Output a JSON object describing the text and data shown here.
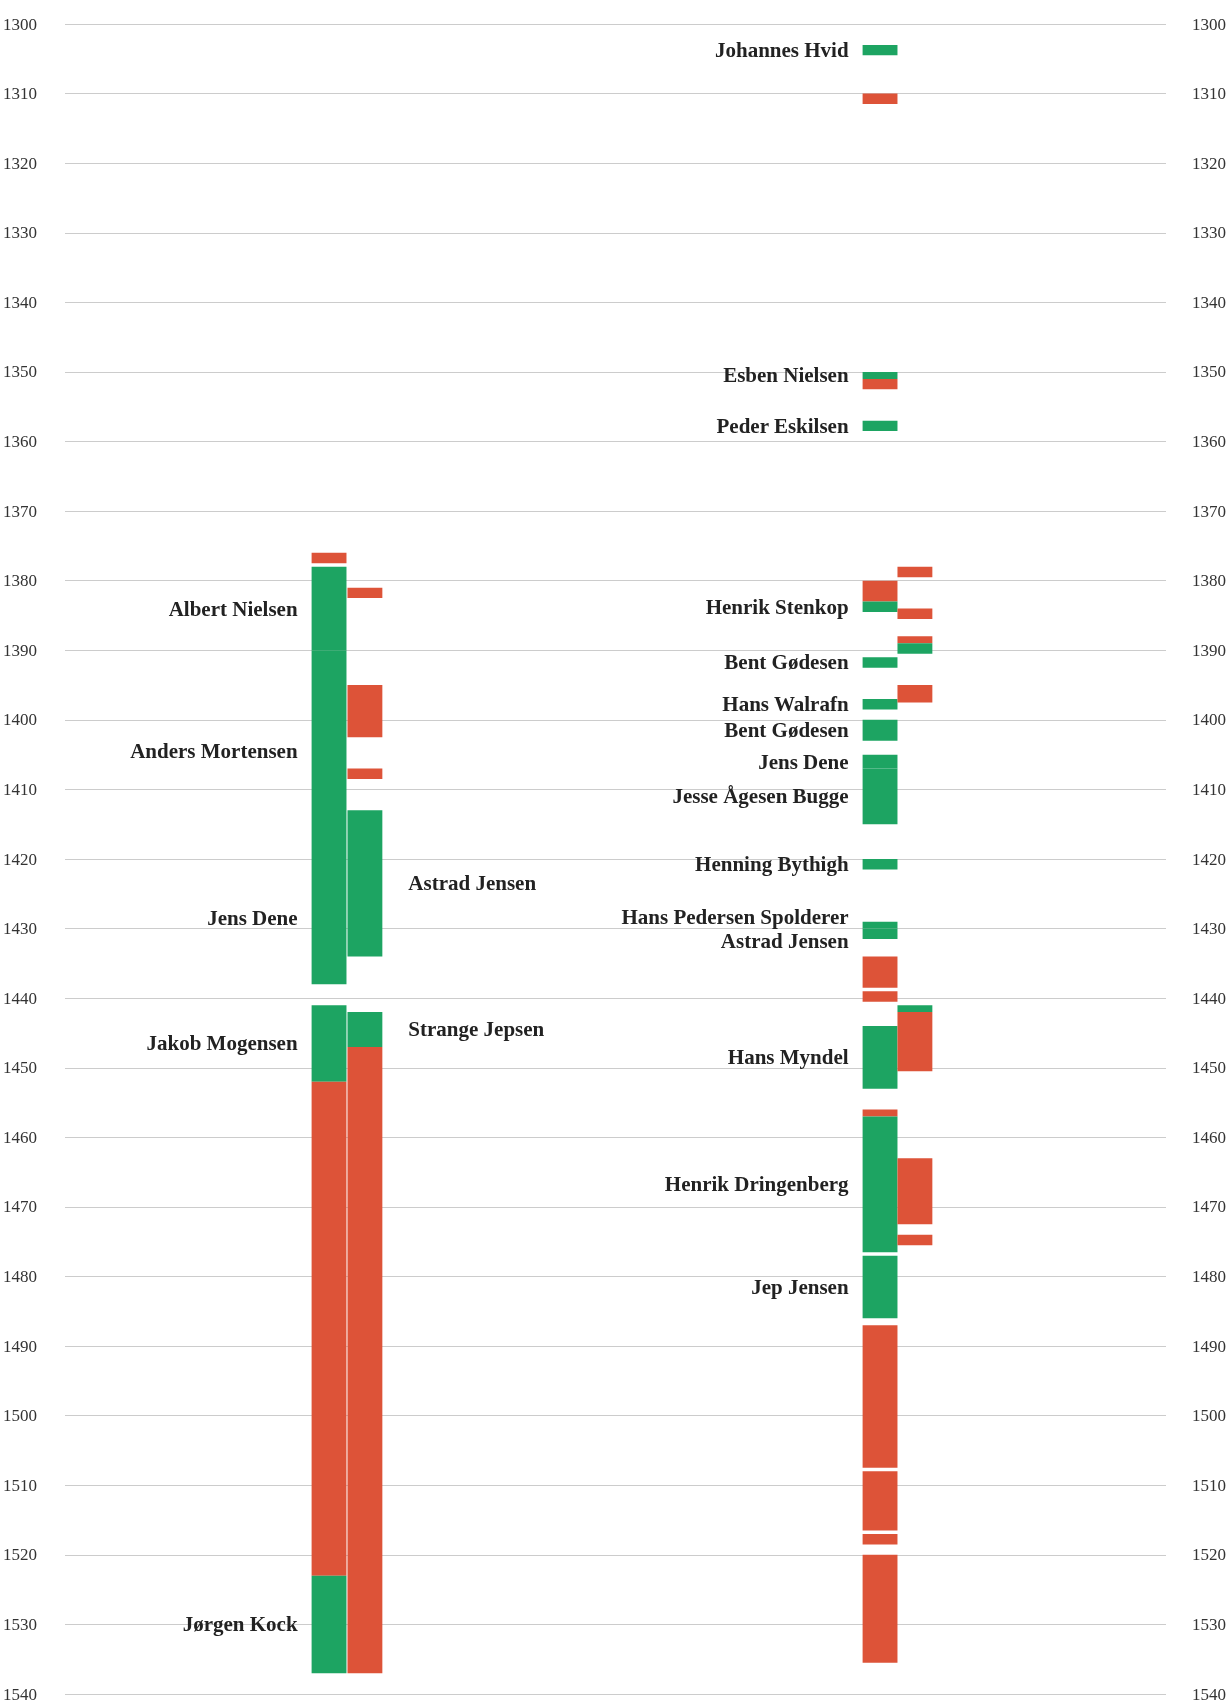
{
  "chart_data": {
    "type": "bar",
    "categories": [
      null,
      null,
      null,
      null
    ],
    "ylim": [
      1540,
      1300
    ],
    "yticks": [
      1300,
      1310,
      1320,
      1330,
      1340,
      1350,
      1360,
      1370,
      1380,
      1390,
      1400,
      1410,
      1420,
      1430,
      1440,
      1450,
      1460,
      1470,
      1480,
      1490,
      1500,
      1510,
      1520,
      1530,
      1540
    ],
    "y2lim": [
      1540,
      1300
    ],
    "y2ticks": [
      1300,
      1310,
      1320,
      1330,
      1340,
      1350,
      1360,
      1370,
      1380,
      1390,
      1400,
      1410,
      1420,
      1430,
      1440,
      1450,
      1460,
      1470,
      1480,
      1490,
      1500,
      1510,
      1520,
      1530,
      1540
    ],
    "grid": "y",
    "series": [
      {
        "color": "#dd5338",
        "values": [
          1.5,
          null,
          null,
          null
        ],
        "base": [
          1376,
          null,
          null,
          null
        ]
      },
      {
        "name": "Albert Nielsen",
        "color": "#1da462",
        "values": [
          12,
          null,
          null,
          null
        ],
        "base": [
          1378,
          null,
          null,
          null
        ]
      },
      {
        "name": "Anders Mortensen",
        "color": "#1da462",
        "values": [
          29,
          null,
          null,
          null
        ],
        "base": [
          1390,
          null,
          null,
          null
        ]
      },
      {
        "name": "Jens Dene",
        "color": "#1da462",
        "values": [
          19,
          null,
          null,
          null
        ],
        "base": [
          1419,
          null,
          null,
          null
        ]
      },
      {
        "name": "Jakob Mogensen",
        "color": "#1da462",
        "values": [
          11,
          null,
          null,
          null
        ],
        "base": [
          1441,
          null,
          null,
          null
        ]
      },
      {
        "color": "#dd5338",
        "values": [
          71,
          null,
          null,
          null
        ],
        "base": [
          1452,
          null,
          null,
          null
        ]
      },
      {
        "name": "Jørgen Kock",
        "color": "#1da462",
        "values": [
          14,
          null,
          null,
          null
        ],
        "base": [
          1523,
          null,
          null,
          null
        ]
      },
      {
        "color": "#dd5338",
        "values": [
          null,
          1.5,
          null,
          null
        ],
        "base": [
          null,
          1381,
          null,
          null
        ]
      },
      {
        "color": "#dd5338",
        "values": [
          null,
          7.5,
          null,
          null
        ],
        "base": [
          null,
          1395,
          null,
          null
        ]
      },
      {
        "color": "#dd5338",
        "values": [
          null,
          1.5,
          null,
          null
        ],
        "base": [
          null,
          1407,
          null,
          null
        ]
      },
      {
        "name": "Astrad Jensen",
        "color": "#1da462",
        "values": [
          null,
          21,
          null,
          null
        ],
        "base": [
          null,
          1413,
          null,
          null
        ]
      },
      {
        "name": "Strange Jepsen",
        "color": "#1da462",
        "values": [
          null,
          5,
          null,
          null
        ],
        "base": [
          null,
          1442,
          null,
          null
        ]
      },
      {
        "color": "#dd5338",
        "values": [
          null,
          90,
          null,
          null
        ],
        "base": [
          null,
          1447,
          null,
          null
        ]
      },
      {
        "name": "Johannes Hvid",
        "color": "#1da462",
        "values": [
          null,
          null,
          1.5,
          null
        ],
        "base": [
          null,
          null,
          1303,
          null
        ]
      },
      {
        "color": "#dd5338",
        "values": [
          null,
          null,
          1.5,
          null
        ],
        "base": [
          null,
          null,
          1310,
          null
        ]
      },
      {
        "name": "Esben Nielsen",
        "color": "#1da462",
        "values": [
          null,
          null,
          1,
          null
        ],
        "base": [
          null,
          null,
          1350,
          null
        ]
      },
      {
        "color": "#dd5338",
        "values": [
          null,
          null,
          1.5,
          null
        ],
        "base": [
          null,
          null,
          1351,
          null
        ]
      },
      {
        "name": "Peder Eskilsen",
        "color": "#1da462",
        "values": [
          null,
          null,
          1.5,
          null
        ],
        "base": [
          null,
          null,
          1357,
          null
        ]
      },
      {
        "color": "#dd5338",
        "values": [
          null,
          null,
          3,
          null
        ],
        "base": [
          null,
          null,
          1380,
          null
        ]
      },
      {
        "name": "Henrik Stenkop",
        "color": "#1da462",
        "values": [
          null,
          null,
          1.5,
          null
        ],
        "base": [
          null,
          null,
          1383,
          null
        ]
      },
      {
        "name": "Bent Gødesen",
        "color": "#1da462",
        "values": [
          null,
          null,
          1.5,
          null
        ],
        "base": [
          null,
          null,
          1391,
          null
        ]
      },
      {
        "name": "Hans Walrafn",
        "color": "#1da462",
        "values": [
          null,
          null,
          1.5,
          null
        ],
        "base": [
          null,
          null,
          1397,
          null
        ]
      },
      {
        "name": "Bent Gødesen",
        "color": "#1da462",
        "values": [
          null,
          null,
          3,
          null
        ],
        "base": [
          null,
          null,
          1400,
          null
        ]
      },
      {
        "name": "Jens Dene",
        "color": "#1da462",
        "values": [
          null,
          null,
          2,
          null
        ],
        "base": [
          null,
          null,
          1405,
          null
        ]
      },
      {
        "name": "Jesse Ågesen Bugge",
        "color": "#1da462",
        "values": [
          null,
          null,
          8,
          null
        ],
        "base": [
          null,
          null,
          1407,
          null
        ]
      },
      {
        "name": "Henning Bythigh",
        "color": "#1da462",
        "values": [
          null,
          null,
          1.5,
          null
        ],
        "base": [
          null,
          null,
          1420,
          null
        ]
      },
      {
        "name": "Hans Pedersen Spolderer",
        "color": "#1da462",
        "values": [
          null,
          null,
          1,
          null
        ],
        "base": [
          null,
          null,
          1429,
          null
        ]
      },
      {
        "name": "Astrad Jensen",
        "color": "#1da462",
        "values": [
          null,
          null,
          1.5,
          null
        ],
        "base": [
          null,
          null,
          1430,
          null
        ]
      },
      {
        "color": "#dd5338",
        "values": [
          null,
          null,
          4.5,
          null
        ],
        "base": [
          null,
          null,
          1434,
          null
        ]
      },
      {
        "color": "#dd5338",
        "values": [
          null,
          null,
          1.5,
          null
        ],
        "base": [
          null,
          null,
          1439,
          null
        ]
      },
      {
        "name": "Hans Myndel",
        "color": "#1da462",
        "values": [
          null,
          null,
          9,
          null
        ],
        "base": [
          null,
          null,
          1444,
          null
        ]
      },
      {
        "color": "#dd5338",
        "values": [
          null,
          null,
          1,
          null
        ],
        "base": [
          null,
          null,
          1456,
          null
        ]
      },
      {
        "name": "Henrik Dringenberg",
        "color": "#1da462",
        "values": [
          null,
          null,
          19.5,
          null
        ],
        "base": [
          null,
          null,
          1457,
          null
        ]
      },
      {
        "name": "Jep Jensen",
        "color": "#1da462",
        "values": [
          null,
          null,
          9,
          null
        ],
        "base": [
          null,
          null,
          1477,
          null
        ]
      },
      {
        "color": "#dd5338",
        "values": [
          null,
          null,
          20.5,
          null
        ],
        "base": [
          null,
          null,
          1487,
          null
        ]
      },
      {
        "color": "#dd5338",
        "values": [
          null,
          null,
          8.5,
          null
        ],
        "base": [
          null,
          null,
          1508,
          null
        ]
      },
      {
        "color": "#dd5338",
        "values": [
          null,
          null,
          1.5,
          null
        ],
        "base": [
          null,
          null,
          1517,
          null
        ]
      },
      {
        "color": "#dd5338",
        "values": [
          null,
          null,
          15.5,
          null
        ],
        "base": [
          null,
          null,
          1520,
          null
        ]
      },
      {
        "color": "#dd5338",
        "values": [
          null,
          null,
          null,
          1.5
        ],
        "base": [
          null,
          null,
          null,
          1378
        ]
      },
      {
        "color": "#dd5338",
        "values": [
          null,
          null,
          null,
          1.5
        ],
        "base": [
          null,
          null,
          null,
          1384
        ]
      },
      {
        "color": "#dd5338",
        "values": [
          null,
          null,
          null,
          1
        ],
        "base": [
          null,
          null,
          null,
          1388
        ]
      },
      {
        "color": "#1da462",
        "values": [
          null,
          null,
          null,
          1.5
        ],
        "base": [
          null,
          null,
          null,
          1389
        ]
      },
      {
        "color": "#dd5338",
        "values": [
          null,
          null,
          null,
          2.5
        ],
        "base": [
          null,
          null,
          null,
          1395
        ]
      },
      {
        "color": "#1da462",
        "values": [
          null,
          null,
          null,
          1
        ],
        "base": [
          null,
          null,
          null,
          1441
        ]
      },
      {
        "color": "#dd5338",
        "values": [
          null,
          null,
          null,
          8.5
        ],
        "base": [
          null,
          null,
          null,
          1442
        ]
      },
      {
        "color": "#dd5338",
        "values": [
          null,
          null,
          null,
          9.5
        ],
        "base": [
          null,
          null,
          null,
          1463
        ]
      },
      {
        "color": "#dd5338",
        "values": [
          null,
          null,
          null,
          1.5
        ],
        "base": [
          null,
          null,
          null,
          1474
        ]
      }
    ]
  }
}
